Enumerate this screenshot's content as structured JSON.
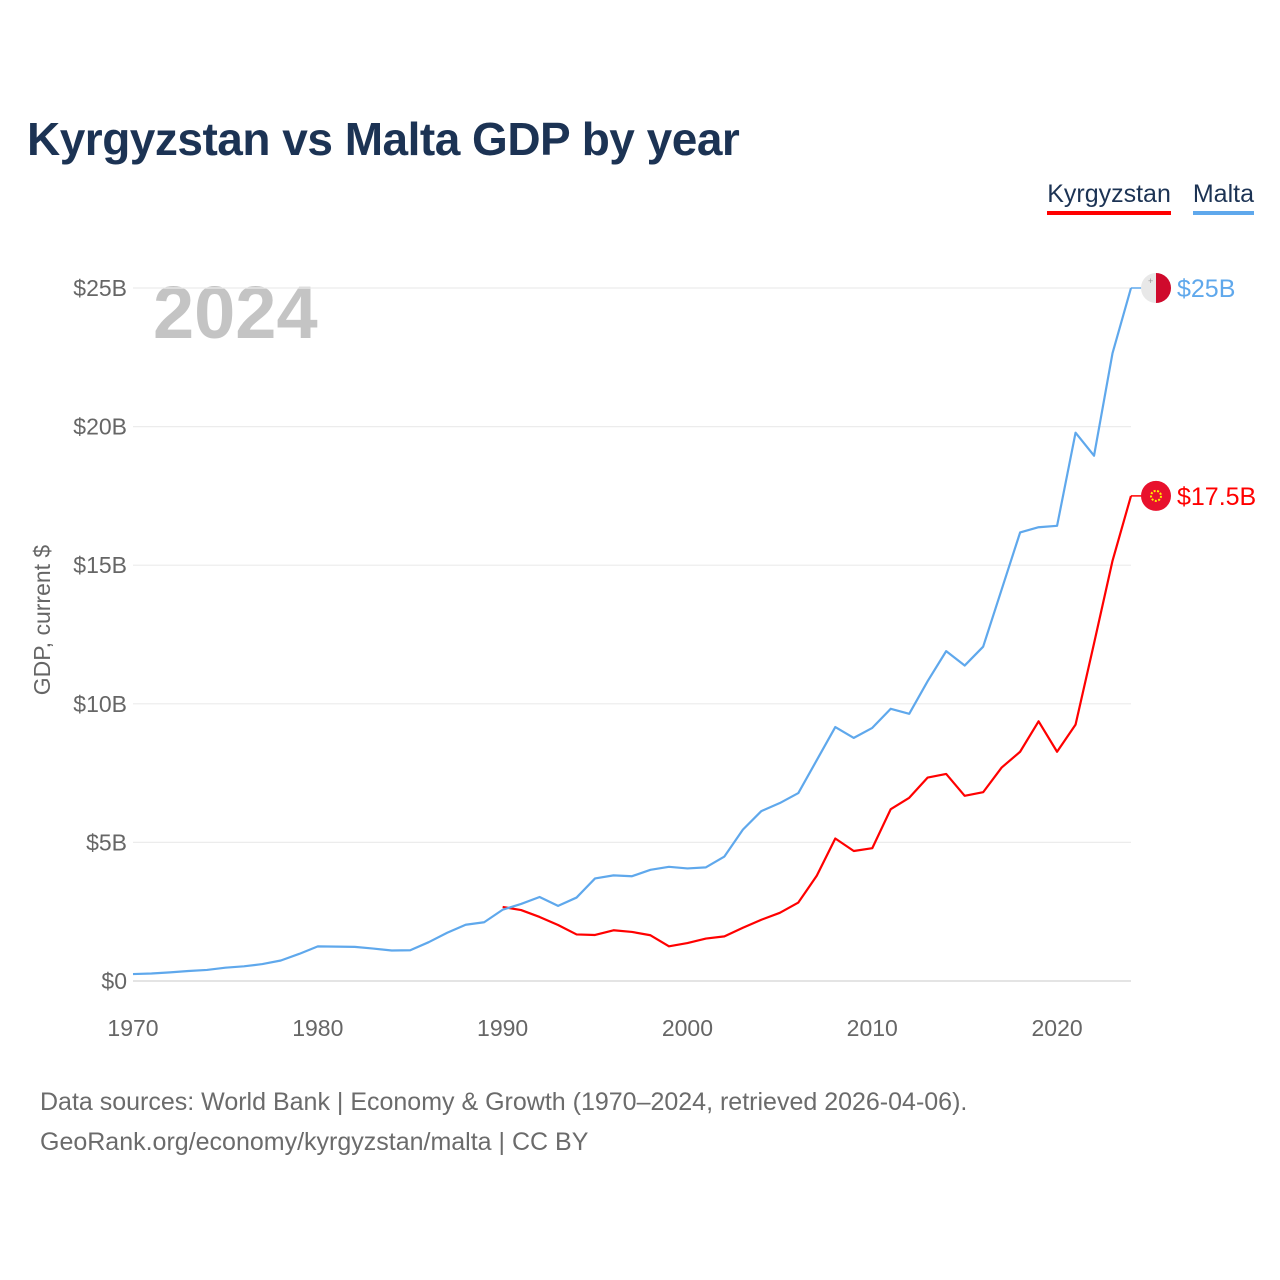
{
  "title": "Kyrgyzstan vs Malta GDP by year",
  "footer": {
    "line1": "Data sources: World Bank | Economy & Growth (1970–2024, retrieved 2026-04-06).",
    "line2": "GeoRank.org/economy/kyrgyzstan/malta | CC BY"
  },
  "chart_data": {
    "type": "line",
    "title": "Kyrgyzstan vs Malta GDP by year",
    "xlabel": "",
    "ylabel": "GDP, current $",
    "year_label": "2024",
    "xlim": [
      1970,
      2024
    ],
    "ylim": [
      0,
      25
    ],
    "grid": true,
    "legend_position": "top-right",
    "x_ticks": [
      1970,
      1980,
      1990,
      2000,
      2010,
      2020
    ],
    "x_tick_labels": [
      "1970",
      "1980",
      "1990",
      "2000",
      "2010",
      "2020"
    ],
    "y_ticks": [
      0,
      5,
      10,
      15,
      20,
      25
    ],
    "y_tick_labels": [
      "$0",
      "$5B",
      "$10B",
      "$15B",
      "$20B",
      "$25B"
    ],
    "series": [
      {
        "name": "Kyrgyzstan",
        "color": "#ff0000",
        "end_label": "$17.5B",
        "start_year": 1990,
        "values": [
          2.67,
          2.56,
          2.31,
          2.02,
          1.68,
          1.66,
          1.83,
          1.77,
          1.65,
          1.25,
          1.37,
          1.53,
          1.61,
          1.92,
          2.21,
          2.46,
          2.83,
          3.8,
          5.14,
          4.69,
          4.79,
          6.2,
          6.61,
          7.34,
          7.47,
          6.68,
          6.81,
          7.7,
          8.27,
          9.37,
          8.27,
          9.25,
          12.18,
          15.16,
          17.5
        ]
      },
      {
        "name": "Malta",
        "color": "#5fa8ec",
        "end_label": "$25B",
        "start_year": 1970,
        "values": [
          0.25,
          0.27,
          0.31,
          0.36,
          0.4,
          0.48,
          0.53,
          0.61,
          0.74,
          0.98,
          1.25,
          1.24,
          1.23,
          1.17,
          1.1,
          1.11,
          1.4,
          1.74,
          2.03,
          2.12,
          2.57,
          2.78,
          3.03,
          2.71,
          3.01,
          3.7,
          3.81,
          3.78,
          4.01,
          4.12,
          4.06,
          4.1,
          4.49,
          5.46,
          6.13,
          6.42,
          6.78,
          7.97,
          9.16,
          8.77,
          9.13,
          9.82,
          9.64,
          10.82,
          11.9,
          11.38,
          12.06,
          14.12,
          16.18,
          16.37,
          16.42,
          19.78,
          18.95,
          22.65,
          25.0
        ]
      }
    ]
  }
}
